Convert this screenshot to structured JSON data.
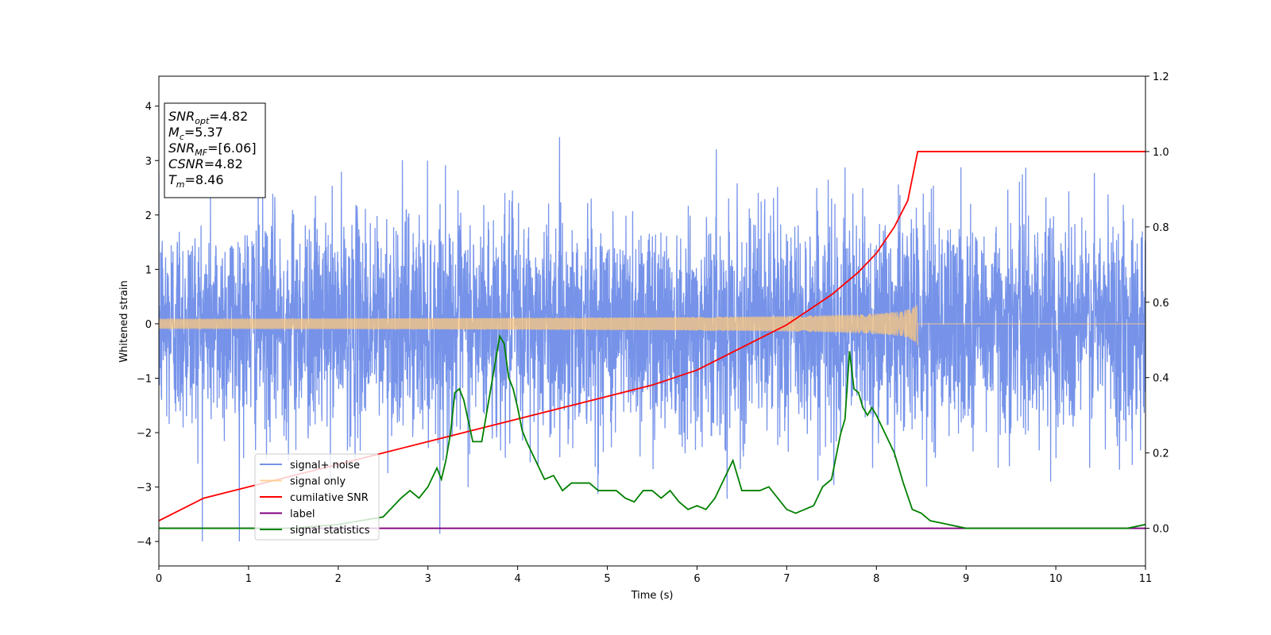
{
  "chart_data": {
    "type": "line",
    "xlabel": "Time (s)",
    "ylabel": "Whitened strain",
    "xlim": [
      0,
      11
    ],
    "ylim": [
      -4.45,
      4.55
    ],
    "y2lim": [
      -0.1,
      1.2
    ],
    "x_ticks": [
      "0",
      "1",
      "2",
      "3",
      "4",
      "5",
      "6",
      "7",
      "8",
      "9",
      "10",
      "11"
    ],
    "y_ticks": [
      "4",
      "3",
      "2",
      "1",
      "0",
      "−1",
      "−2",
      "−3",
      "−4"
    ],
    "y2_ticks": [
      "1.2",
      "1.0",
      "0.8",
      "0.6",
      "0.4",
      "0.2",
      "0.0"
    ],
    "grid": false,
    "legend_position": "lower-left",
    "annotation_box": {
      "lines": [
        {
          "base": "SNR",
          "sub": "opt",
          "rest": "=4.82"
        },
        {
          "base": "M",
          "sub": "c",
          "rest": "=5.37"
        },
        {
          "base": "SNR",
          "sub": "MF",
          "rest": "=[6.06]"
        },
        {
          "base": "CSNR",
          "sub": "",
          "rest": "=4.82"
        },
        {
          "base": "T",
          "sub": "m",
          "rest": "=8.46"
        }
      ]
    },
    "series": [
      {
        "name": "signal+ noise",
        "color": "#4169e1",
        "axis": "left",
        "kind": "noise",
        "description_values": {
          "amplitude_std": 1.0,
          "x_start": 0,
          "x_end": 11
        }
      },
      {
        "name": "signal only",
        "color": "#ffc87c",
        "axis": "left",
        "kind": "chirp",
        "chirp_end": 8.46,
        "peak_amplitude": 0.42
      },
      {
        "name": "cumilative SNR",
        "color": "#ff0000",
        "axis": "right",
        "x": [
          0,
          0.5,
          1,
          1.5,
          2,
          2.5,
          3,
          3.5,
          4,
          4.5,
          5,
          5.5,
          6,
          6.5,
          7,
          7.5,
          7.8,
          8.0,
          8.2,
          8.35,
          8.46,
          11
        ],
        "y": [
          0.02,
          0.08,
          0.11,
          0.14,
          0.17,
          0.2,
          0.23,
          0.26,
          0.29,
          0.32,
          0.35,
          0.38,
          0.42,
          0.48,
          0.54,
          0.62,
          0.68,
          0.73,
          0.8,
          0.87,
          1.0,
          1.0
        ]
      },
      {
        "name": "label",
        "color": "#800080",
        "axis": "right",
        "x": [
          0,
          11
        ],
        "y": [
          0.0,
          0.0
        ]
      },
      {
        "name": "signal statistics",
        "color": "#008000",
        "axis": "right",
        "x": [
          0,
          1,
          1.5,
          2.0,
          2.5,
          2.7,
          2.75,
          2.8,
          2.85,
          2.9,
          3.0,
          3.1,
          3.15,
          3.2,
          3.25,
          3.3,
          3.35,
          3.4,
          3.5,
          3.6,
          3.7,
          3.8,
          3.85,
          3.9,
          3.95,
          4.0,
          4.05,
          4.1,
          4.2,
          4.3,
          4.4,
          4.5,
          4.6,
          4.7,
          4.8,
          4.9,
          5.0,
          5.1,
          5.2,
          5.3,
          5.4,
          5.5,
          5.6,
          5.7,
          5.8,
          5.9,
          6.0,
          6.1,
          6.2,
          6.3,
          6.4,
          6.5,
          6.6,
          6.7,
          6.8,
          6.9,
          7.0,
          7.1,
          7.2,
          7.3,
          7.4,
          7.5,
          7.6,
          7.65,
          7.7,
          7.75,
          7.8,
          7.85,
          7.9,
          7.95,
          8.0,
          8.1,
          8.2,
          8.3,
          8.4,
          8.5,
          8.6,
          8.8,
          9.0,
          9.3,
          9.6,
          10.0,
          10.5,
          10.8,
          11.0
        ],
        "y": [
          0.0,
          0.0,
          0.0,
          0.01,
          0.03,
          0.08,
          0.09,
          0.1,
          0.09,
          0.08,
          0.11,
          0.16,
          0.13,
          0.18,
          0.25,
          0.36,
          0.37,
          0.34,
          0.23,
          0.23,
          0.37,
          0.51,
          0.49,
          0.4,
          0.37,
          0.32,
          0.26,
          0.23,
          0.18,
          0.13,
          0.14,
          0.1,
          0.12,
          0.12,
          0.12,
          0.1,
          0.1,
          0.1,
          0.08,
          0.07,
          0.1,
          0.1,
          0.08,
          0.1,
          0.07,
          0.05,
          0.06,
          0.05,
          0.08,
          0.13,
          0.18,
          0.1,
          0.1,
          0.1,
          0.11,
          0.08,
          0.05,
          0.04,
          0.05,
          0.06,
          0.11,
          0.13,
          0.25,
          0.29,
          0.47,
          0.37,
          0.36,
          0.32,
          0.3,
          0.32,
          0.3,
          0.25,
          0.2,
          0.12,
          0.05,
          0.04,
          0.02,
          0.01,
          0.0,
          0.0,
          0.0,
          0.0,
          0.0,
          0.0,
          0.01
        ]
      }
    ]
  }
}
